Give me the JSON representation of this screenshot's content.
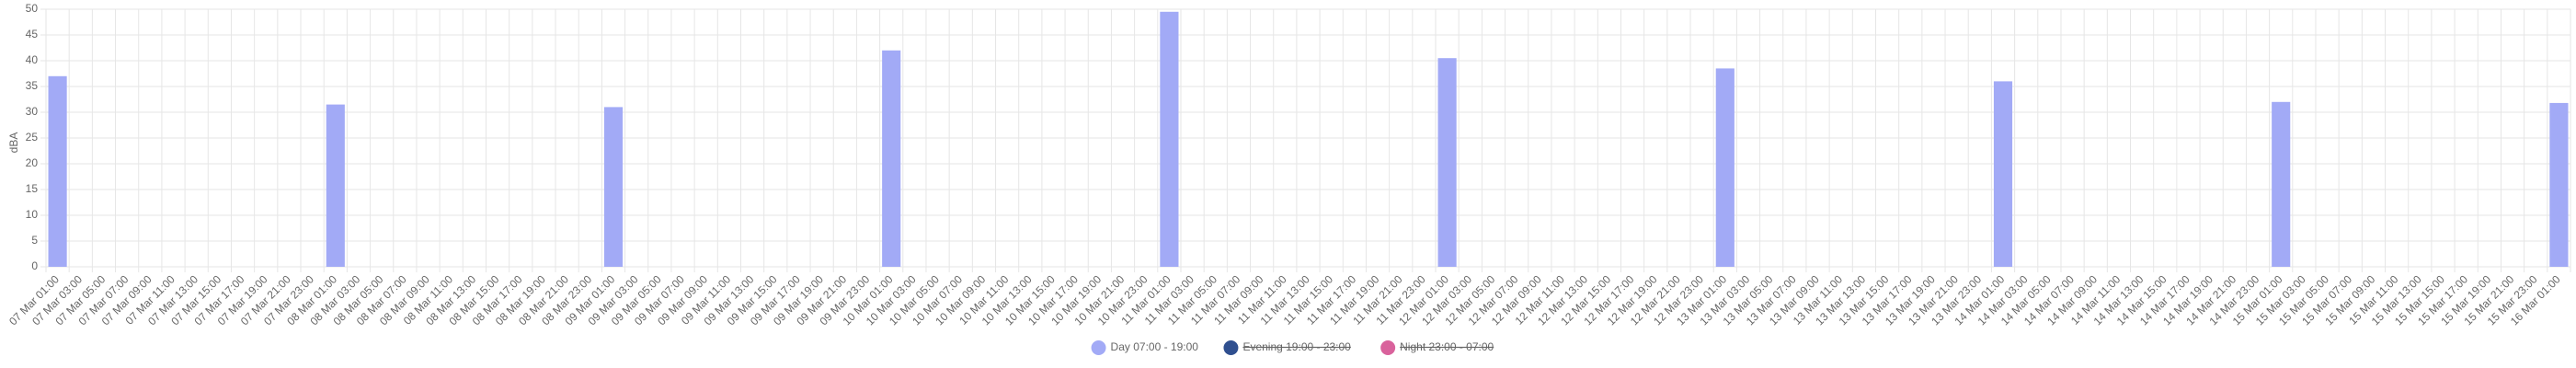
{
  "chart_data": {
    "type": "bar",
    "y_label": "dBA",
    "ylim": [
      0,
      50
    ],
    "yticks": [
      0,
      5,
      10,
      15,
      20,
      25,
      30,
      35,
      40,
      45,
      50
    ],
    "grid": true,
    "legend": "bottom",
    "categories": [
      "07 Mar 01:00",
      "07 Mar 03:00",
      "07 Mar 05:00",
      "07 Mar 07:00",
      "07 Mar 09:00",
      "07 Mar 11:00",
      "07 Mar 13:00",
      "07 Mar 15:00",
      "07 Mar 17:00",
      "07 Mar 19:00",
      "07 Mar 21:00",
      "07 Mar 23:00",
      "08 Mar 01:00",
      "08 Mar 03:00",
      "08 Mar 05:00",
      "08 Mar 07:00",
      "08 Mar 09:00",
      "08 Mar 11:00",
      "08 Mar 13:00",
      "08 Mar 15:00",
      "08 Mar 17:00",
      "08 Mar 19:00",
      "08 Mar 21:00",
      "08 Mar 23:00",
      "09 Mar 01:00",
      "09 Mar 03:00",
      "09 Mar 05:00",
      "09 Mar 07:00",
      "09 Mar 09:00",
      "09 Mar 11:00",
      "09 Mar 13:00",
      "09 Mar 15:00",
      "09 Mar 17:00",
      "09 Mar 19:00",
      "09 Mar 21:00",
      "09 Mar 23:00",
      "10 Mar 01:00",
      "10 Mar 03:00",
      "10 Mar 05:00",
      "10 Mar 07:00",
      "10 Mar 09:00",
      "10 Mar 11:00",
      "10 Mar 13:00",
      "10 Mar 15:00",
      "10 Mar 17:00",
      "10 Mar 19:00",
      "10 Mar 21:00",
      "10 Mar 23:00",
      "11 Mar 01:00",
      "11 Mar 03:00",
      "11 Mar 05:00",
      "11 Mar 07:00",
      "11 Mar 09:00",
      "11 Mar 11:00",
      "11 Mar 13:00",
      "11 Mar 15:00",
      "11 Mar 17:00",
      "11 Mar 19:00",
      "11 Mar 21:00",
      "11 Mar 23:00",
      "12 Mar 01:00",
      "12 Mar 03:00",
      "12 Mar 05:00",
      "12 Mar 07:00",
      "12 Mar 09:00",
      "12 Mar 11:00",
      "12 Mar 13:00",
      "12 Mar 15:00",
      "12 Mar 17:00",
      "12 Mar 19:00",
      "12 Mar 21:00",
      "12 Mar 23:00",
      "13 Mar 01:00",
      "13 Mar 03:00",
      "13 Mar 05:00",
      "13 Mar 07:00",
      "13 Mar 09:00",
      "13 Mar 11:00",
      "13 Mar 13:00",
      "13 Mar 15:00",
      "13 Mar 17:00",
      "13 Mar 19:00",
      "13 Mar 21:00",
      "13 Mar 23:00",
      "14 Mar 01:00",
      "14 Mar 03:00",
      "14 Mar 05:00",
      "14 Mar 07:00",
      "14 Mar 09:00",
      "14 Mar 11:00",
      "14 Mar 13:00",
      "14 Mar 15:00",
      "14 Mar 17:00",
      "14 Mar 19:00",
      "14 Mar 21:00",
      "14 Mar 23:00",
      "15 Mar 01:00",
      "15 Mar 03:00",
      "15 Mar 05:00",
      "15 Mar 07:00",
      "15 Mar 09:00",
      "15 Mar 11:00",
      "15 Mar 13:00",
      "15 Mar 15:00",
      "15 Mar 17:00",
      "15 Mar 19:00",
      "15 Mar 21:00",
      "15 Mar 23:00",
      "16 Mar 01:00"
    ],
    "series": [
      {
        "name": "Day 07:00 - 19:00",
        "color": "#a2aaf6",
        "hidden": false,
        "values": [
          37,
          null,
          null,
          null,
          null,
          null,
          null,
          null,
          null,
          null,
          null,
          null,
          31.5,
          null,
          null,
          null,
          null,
          null,
          null,
          null,
          null,
          null,
          null,
          null,
          31,
          null,
          null,
          null,
          null,
          null,
          null,
          null,
          null,
          null,
          null,
          null,
          42,
          null,
          null,
          null,
          null,
          null,
          null,
          null,
          null,
          null,
          null,
          null,
          49.5,
          null,
          null,
          null,
          null,
          null,
          null,
          null,
          null,
          null,
          null,
          null,
          40.5,
          null,
          null,
          null,
          null,
          null,
          null,
          null,
          null,
          null,
          null,
          null,
          38.5,
          null,
          null,
          null,
          null,
          null,
          null,
          null,
          null,
          null,
          null,
          null,
          36,
          null,
          null,
          null,
          null,
          null,
          null,
          null,
          null,
          null,
          null,
          null,
          32,
          null,
          null,
          null,
          null,
          null,
          null,
          null,
          null,
          null,
          null,
          null,
          31.8
        ]
      },
      {
        "name": "Evening 19:00 - 23:00",
        "color": "#2f4f8f",
        "hidden": true
      },
      {
        "name": "Night 23:00 - 07:00",
        "color": "#d9629c",
        "hidden": true
      }
    ]
  }
}
